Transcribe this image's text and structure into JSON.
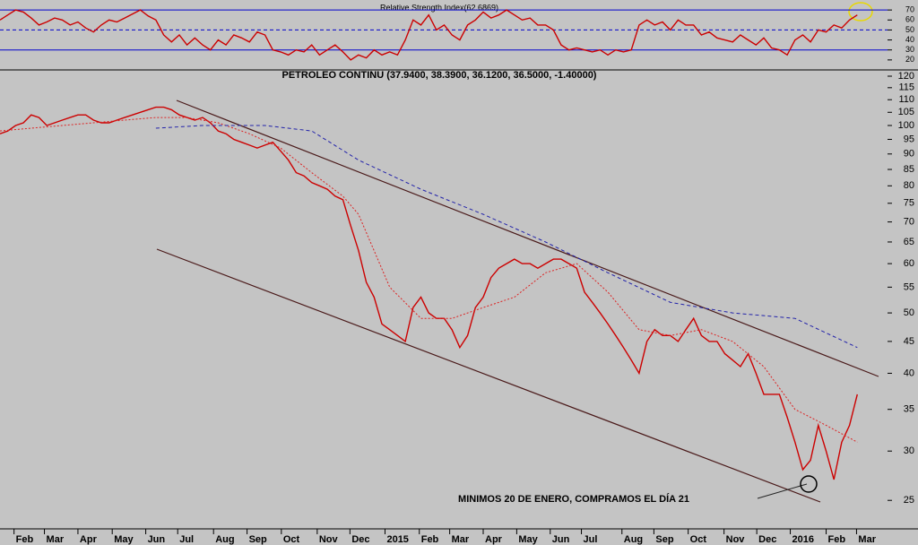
{
  "chart_data": [
    {
      "type": "line",
      "title": "Relative Strength Index(62.6869)",
      "ylim": [
        10,
        80
      ],
      "yticks": [
        20,
        30,
        40,
        50,
        60,
        70
      ],
      "levels": [
        {
          "value": 70,
          "style": "solid"
        },
        {
          "value": 50,
          "style": "dashed"
        },
        {
          "value": 30,
          "style": "solid"
        }
      ],
      "xlim": [
        0,
        111
      ],
      "series": [
        {
          "color": "#cc0000",
          "x": [
            0,
            1,
            2,
            3,
            4,
            5,
            6,
            7,
            8,
            9,
            10,
            11,
            12,
            13,
            14,
            15,
            16,
            17,
            18,
            19,
            20,
            21,
            22,
            23,
            24,
            25,
            26,
            27,
            28,
            29,
            30,
            31,
            32,
            33,
            34,
            35,
            36,
            37,
            38,
            39,
            40,
            41,
            42,
            43,
            44,
            45,
            46,
            47,
            48,
            49,
            50,
            51,
            52,
            53,
            54,
            55,
            56,
            57,
            58,
            59,
            60,
            61,
            62,
            63,
            64,
            65,
            66,
            67,
            68,
            69,
            70,
            71,
            72,
            73,
            74,
            75,
            76,
            77,
            78,
            79,
            80,
            81,
            82,
            83,
            84,
            85,
            86,
            87,
            88,
            89,
            90,
            91,
            92,
            93,
            94,
            95,
            96,
            97,
            98,
            99,
            100,
            101,
            102,
            103,
            104,
            105,
            106,
            107,
            108,
            109,
            110
          ],
          "values": [
            60,
            65,
            70,
            68,
            62,
            55,
            58,
            62,
            60,
            55,
            58,
            52,
            48,
            55,
            60,
            58,
            62,
            66,
            70,
            64,
            60,
            45,
            38,
            45,
            35,
            42,
            35,
            30,
            40,
            35,
            45,
            42,
            38,
            48,
            45,
            30,
            28,
            25,
            30,
            28,
            35,
            25,
            30,
            35,
            28,
            20,
            25,
            22,
            30,
            25,
            28,
            25,
            40,
            60,
            55,
            65,
            50,
            55,
            45,
            40,
            55,
            60,
            68,
            62,
            65,
            70,
            65,
            60,
            62,
            55,
            55,
            50,
            35,
            30,
            32,
            30,
            28,
            30,
            25,
            30,
            28,
            30,
            55,
            60,
            55,
            58,
            50,
            60,
            55,
            55,
            45,
            48,
            42,
            40,
            38,
            45,
            40,
            35,
            42,
            32,
            30,
            25,
            40,
            45,
            38,
            50,
            48,
            55,
            52,
            60,
            65
          ]
        }
      ]
    },
    {
      "type": "line",
      "title": "PETROLEO CONTINU (37.9400, 38.3900, 36.1200, 36.5000, -1.40000)",
      "annotation": "MINIMOS 20 DE ENERO, COMPRAMOS EL DÍA 21",
      "log_scale": true,
      "ylim": [
        22.5,
        122
      ],
      "yticks": [
        25,
        30,
        35,
        40,
        45,
        50,
        55,
        60,
        65,
        70,
        75,
        80,
        85,
        90,
        95,
        100,
        105,
        110,
        115,
        120
      ],
      "xlim": [
        0,
        111
      ],
      "xticks": [
        {
          "value": 1.8,
          "label": "Feb"
        },
        {
          "value": 5.7,
          "label": "Mar"
        },
        {
          "value": 10,
          "label": "Apr"
        },
        {
          "value": 14.4,
          "label": "May"
        },
        {
          "value": 18.7,
          "label": "Jun"
        },
        {
          "value": 22.8,
          "label": "Jul"
        },
        {
          "value": 27.4,
          "label": "Aug"
        },
        {
          "value": 31.7,
          "label": "Sep"
        },
        {
          "value": 36.1,
          "label": "Oct"
        },
        {
          "value": 40.7,
          "label": "Nov"
        },
        {
          "value": 44.9,
          "label": "Dec"
        },
        {
          "value": 49.4,
          "label": "2015"
        },
        {
          "value": 53.8,
          "label": "Feb"
        },
        {
          "value": 57.7,
          "label": "Mar"
        },
        {
          "value": 62,
          "label": "Apr"
        },
        {
          "value": 66.3,
          "label": "May"
        },
        {
          "value": 70.6,
          "label": "Jun"
        },
        {
          "value": 74.6,
          "label": "Jul"
        },
        {
          "value": 79.8,
          "label": "Aug"
        },
        {
          "value": 83.9,
          "label": "Sep"
        },
        {
          "value": 88.3,
          "label": "Oct"
        },
        {
          "value": 92.9,
          "label": "Nov"
        },
        {
          "value": 97.1,
          "label": "Dec"
        },
        {
          "value": 101.4,
          "label": "2016"
        },
        {
          "value": 106,
          "label": "Feb"
        },
        {
          "value": 109.9,
          "label": "Mar"
        }
      ],
      "series": [
        {
          "color": "#cc0000",
          "style": "solid",
          "x": [
            0,
            1,
            2,
            3,
            4,
            5,
            6,
            7,
            8,
            9,
            10,
            11,
            12,
            13,
            14,
            15,
            16,
            17,
            18,
            19,
            20,
            21,
            22,
            23,
            24,
            25,
            26,
            27,
            28,
            29,
            30,
            31,
            32,
            33,
            34,
            35,
            36,
            37,
            38,
            39,
            40,
            41,
            42,
            43,
            44,
            45,
            46,
            47,
            48,
            49,
            50,
            51,
            52,
            53,
            54,
            55,
            56,
            57,
            58,
            59,
            60,
            61,
            62,
            63,
            64,
            65,
            66,
            67,
            68,
            69,
            70,
            71,
            72,
            73,
            74,
            75,
            76,
            77,
            78,
            79,
            80,
            81,
            82,
            83,
            84,
            85,
            86,
            87,
            88,
            89,
            90,
            91,
            92,
            93,
            94,
            95,
            96,
            97,
            98,
            99,
            100,
            101,
            102,
            103,
            104,
            105,
            106,
            107,
            108,
            109,
            110
          ],
          "values": [
            97,
            98,
            100,
            101,
            104,
            103,
            100,
            101,
            102,
            103,
            104,
            104,
            102,
            101,
            101,
            102,
            103,
            104,
            105,
            106,
            107,
            107,
            106,
            104,
            103,
            102,
            103,
            101,
            98,
            97,
            95,
            94,
            93,
            92,
            93,
            94,
            91,
            88,
            84,
            83,
            81,
            80,
            79,
            77,
            76,
            69,
            63,
            56,
            53,
            48,
            47,
            46,
            45,
            51,
            53,
            50,
            49,
            49,
            47,
            44,
            46,
            51,
            53,
            57,
            59,
            60,
            61,
            60,
            60,
            59,
            60,
            61,
            61,
            60,
            59,
            54,
            52,
            50,
            48,
            46,
            44,
            42,
            40,
            45,
            47,
            46,
            46,
            45,
            47,
            49,
            46,
            45,
            45,
            43,
            42,
            41,
            43,
            40,
            37,
            37,
            37,
            34,
            31,
            28,
            29,
            33,
            30,
            27,
            31,
            33,
            37
          ]
        },
        {
          "color": "#dd2222",
          "style": "dotted",
          "x": [
            0,
            4,
            8,
            12,
            16,
            20,
            24,
            28,
            32,
            36,
            40,
            44,
            46,
            50,
            54,
            58,
            62,
            66,
            70,
            74,
            78,
            82,
            86,
            90,
            94,
            98,
            102,
            106,
            110
          ],
          "values": [
            98,
            99,
            100,
            101,
            102,
            103,
            103,
            101,
            97,
            92,
            84,
            77,
            72,
            55,
            49,
            49,
            51,
            53,
            58,
            60,
            54,
            47,
            46,
            47,
            45,
            41,
            35,
            33,
            31
          ]
        },
        {
          "color": "#2222aa",
          "style": "dashed",
          "x": [
            20,
            26,
            30,
            34,
            40,
            46,
            54,
            62,
            70,
            78,
            86,
            94,
            102,
            110
          ],
          "values": [
            99,
            100,
            100,
            100,
            98,
            88,
            79,
            72,
            65,
            58,
            52,
            50,
            49,
            44
          ]
        }
      ]
    }
  ]
}
